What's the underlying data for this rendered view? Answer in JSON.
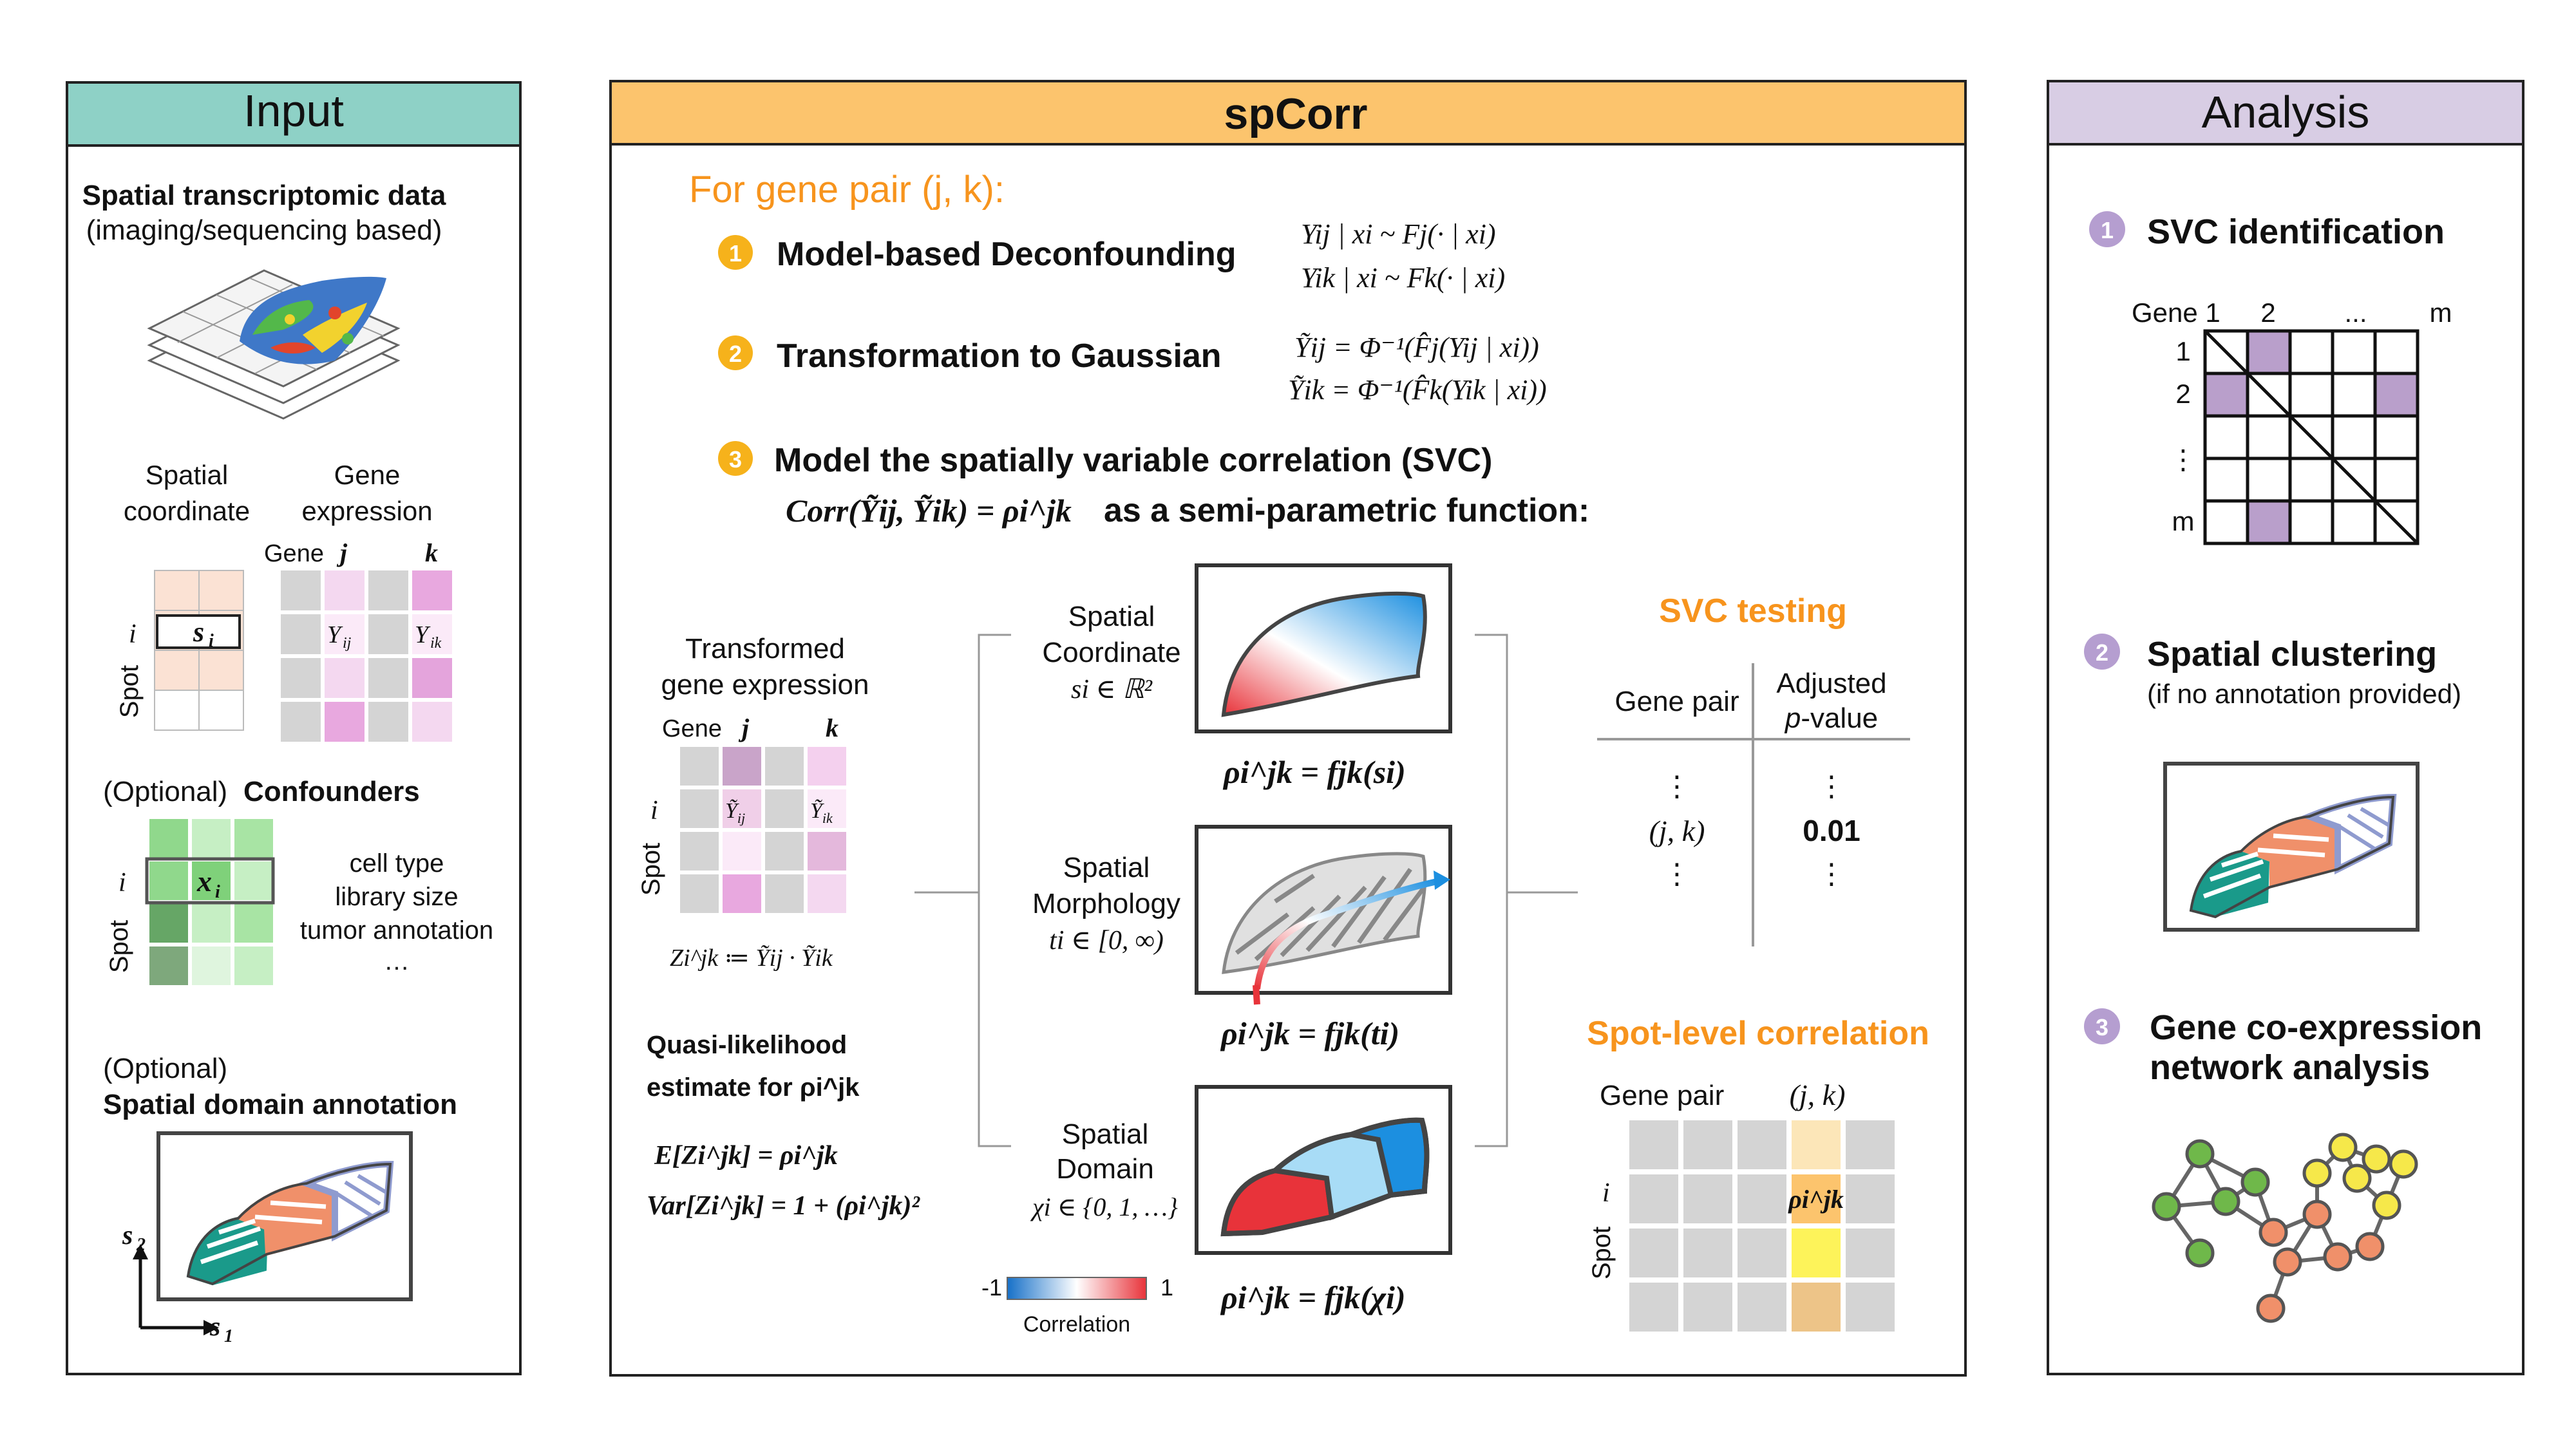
{
  "input": {
    "header": "Input",
    "st_title": "Spatial transcriptomic data",
    "st_sub": "(imaging/sequencing based)",
    "spatial_coordinate": [
      "Spatial",
      "coordinate"
    ],
    "gene_expression": [
      "Gene",
      "expression"
    ],
    "gene": "Gene",
    "j": "j",
    "k": "k",
    "i": "i",
    "spot": "Spot",
    "s_i": "s",
    "s_i_sub": "i",
    "y_ij": "Y",
    "y_ij_sub": "ij",
    "y_ik": "Y",
    "y_ik_sub": "ik",
    "optional": "(Optional)",
    "confounders": "Confounders",
    "x_i": "x",
    "x_i_sub": "i",
    "confounder_items": [
      "cell type",
      "library size",
      "tumor annotation",
      "…"
    ],
    "domain_optional": "(Optional)",
    "domain_title": "Spatial domain annotation",
    "axis_s2": "s",
    "axis_s2_sub": "2",
    "axis_s1": "s",
    "axis_s1_sub": "1"
  },
  "spcorr": {
    "header": "spCorr",
    "pair_title": "For gene pair (j, k):",
    "steps": [
      {
        "num": "1",
        "title": "Model-based Deconfounding"
      },
      {
        "num": "2",
        "title": "Transformation to Gaussian"
      },
      {
        "num": "3",
        "title": "Model the spatially variable correlation (SVC)"
      }
    ],
    "eq_step1": [
      "Yij | xi ~ Fj(· | xi)",
      "Yik | xi ~ Fk(· | xi)"
    ],
    "eq_step2": [
      "Ỹij = Φ⁻¹(F̂j(Yij | xi))",
      "Ỹik = Φ⁻¹(F̂k(Yik | xi))"
    ],
    "eq_step3": "Corr(Ỹij, Ỹik) = ρi^jk",
    "eq_step3_tail": "as a semi-parametric function:",
    "transformed": [
      "Transformed",
      "gene expression"
    ],
    "gene": "Gene",
    "j": "j",
    "k": "k",
    "i": "i",
    "spot": "Spot",
    "z_def": "Zi^jk ≔ Ỹij · Ỹik",
    "quasi": [
      "Quasi-likelihood",
      "estimate for ρi^jk"
    ],
    "expect": "E[Zi^jk] = ρi^jk",
    "variance": "Var[Zi^jk] = 1 + (ρi^jk)²",
    "models": [
      {
        "label": [
          "Spatial",
          "Coordinate"
        ],
        "var": "si ∈ ℝ²",
        "formula": "ρi^jk = fjk(si)"
      },
      {
        "label": [
          "Spatial",
          "Morphology"
        ],
        "var": "ti ∈ [0, ∞)",
        "formula": "ρi^jk = fjk(ti)"
      },
      {
        "label": [
          "Spatial",
          "Domain"
        ],
        "var": "χi ∈ {0, 1, …}",
        "formula": "ρi^jk = fjk(χi)"
      }
    ],
    "colorbar": {
      "min": "-1",
      "max": "1",
      "label": "Correlation"
    },
    "svc_testing": {
      "title": "SVC testing",
      "col1": "Gene pair",
      "col2": [
        "Adjusted",
        "p-value"
      ],
      "row_pair": "(j, k)",
      "row_p": "0.01",
      "dots": "⋮"
    },
    "spot_level": {
      "title": "Spot-level correlation",
      "gene_pair": "Gene pair",
      "pair": "(j, k)",
      "i": "i",
      "spot": "Spot",
      "rho": "ρi^jk"
    }
  },
  "analysis": {
    "header": "Analysis",
    "items": [
      {
        "num": "1",
        "title": "SVC identification"
      },
      {
        "num": "2",
        "title": "Spatial clustering",
        "sub": "(if no annotation provided)"
      },
      {
        "num": "3",
        "title": [
          "Gene co-expression",
          "network analysis"
        ]
      }
    ],
    "matrix_col_labels": [
      "Gene 1",
      "2",
      "...",
      "m"
    ],
    "matrix_row_labels": [
      "1",
      "2",
      "⋮",
      "m"
    ]
  },
  "colors": {
    "input_header": "#8ed1c6",
    "spcorr_header": "#fcc46d",
    "analysis_header": "#d8cde4",
    "step_badge": "#f6b21b",
    "analysis_badge": "#b59ed0",
    "orange_text": "#f7941d",
    "pink": "#e8a8df",
    "purple_cell": "#b99fcb",
    "green": "#7fd17a",
    "teal": "#1a9a8a",
    "salmon": "#f0906a",
    "lavender": "#8f9bcf",
    "red": "#e8333a",
    "blue": "#1c8fe0"
  }
}
